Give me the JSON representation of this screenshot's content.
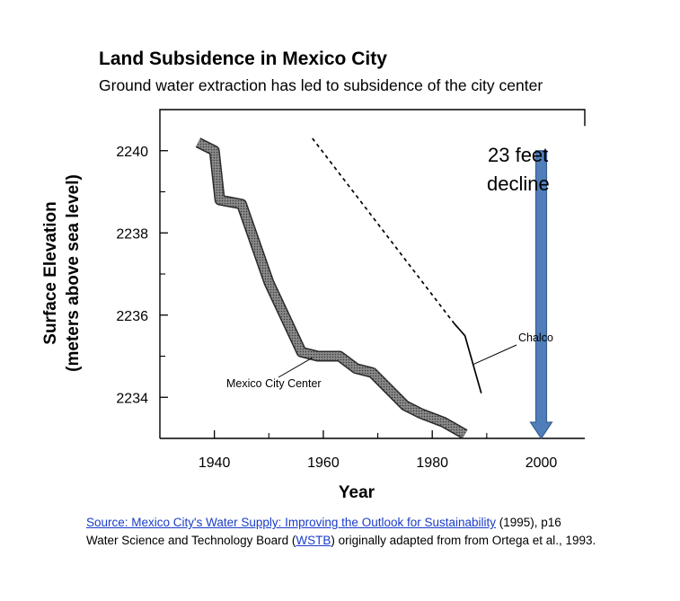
{
  "chart_data": {
    "type": "line",
    "title": "Land Subsidence in Mexico City",
    "subtitle": "Ground water extraction has led to subsidence of the city center",
    "xlabel": "Year",
    "ylabel_line1": "Surface Elevation",
    "ylabel_line2": "(meters above sea level)",
    "xlim": [
      1930,
      2008
    ],
    "ylim": [
      2233,
      2241
    ],
    "x_ticks": [
      1940,
      1960,
      1980,
      2000
    ],
    "y_ticks": [
      2234,
      2236,
      2238,
      2240
    ],
    "series": [
      {
        "name": "Mexico City Center",
        "style": "thick-hatched",
        "x": [
          1937,
          1940,
          1941,
          1945,
          1950,
          1956,
          1959,
          1963,
          1966,
          1969,
          1972,
          1975,
          1978,
          1982,
          1986
        ],
        "y": [
          2240.2,
          2240.0,
          2238.8,
          2238.7,
          2236.8,
          2235.1,
          2235.0,
          2235.0,
          2234.7,
          2234.6,
          2234.2,
          2233.8,
          2233.6,
          2233.4,
          2233.1
        ]
      },
      {
        "name": "Chalco",
        "style": "dashed-then-solid",
        "dashed": {
          "x": [
            1958,
            1984
          ],
          "y": [
            2240.3,
            2235.8
          ]
        },
        "solid": {
          "x": [
            1984,
            1986,
            1989
          ],
          "y": [
            2235.8,
            2235.5,
            2234.1
          ]
        }
      }
    ],
    "annotation": {
      "line1": "23 feet",
      "line2": "decline",
      "arrow_x": 2000,
      "arrow_from": 2240.0,
      "arrow_to": 2233.0,
      "arrow_color": "#4f7ebb",
      "arrow_outline": "#3a5f8f"
    },
    "colors": {
      "series_fill": "#707070",
      "series_outline": "#2a2a2a",
      "axis": "#000000"
    }
  },
  "source": {
    "link_text": "Source:  Mexico City's Water Supply: Improving the Outlook for Sustainability",
    "after_link": " (1995), p16",
    "line2_before": "Water Science and Technology Board (",
    "line2_link": "WSTB",
    "line2_after": ") originally adapted from from Ortega et al., 1993."
  }
}
